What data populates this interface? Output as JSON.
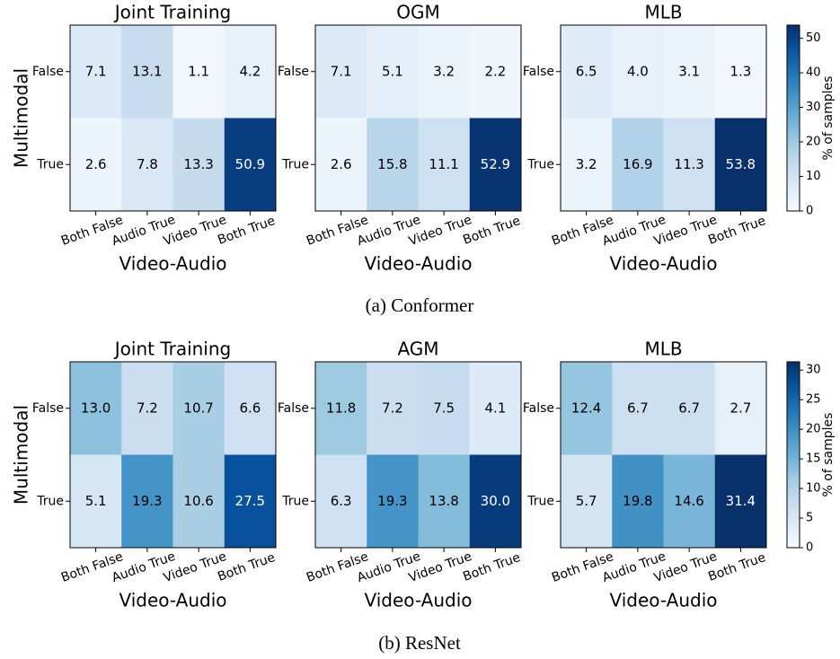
{
  "chart_data": [
    {
      "type": "heatmap",
      "title": "Joint Training",
      "x_label": "Video-Audio",
      "y_label": "Multimodal",
      "x": [
        "Both False",
        "Audio True",
        "Video True",
        "Both True"
      ],
      "y": [
        "False",
        "True"
      ],
      "values": [
        [
          7.1,
          13.1,
          1.1,
          4.2
        ],
        [
          2.6,
          7.8,
          13.3,
          50.9
        ]
      ],
      "value_labels": [
        [
          "7.1",
          "13.1",
          "1.1",
          "4.2"
        ],
        [
          "2.6",
          "7.8",
          "13.3",
          "50.9"
        ]
      ],
      "colormap": "Blues",
      "clim": [
        0,
        53.8
      ]
    },
    {
      "type": "heatmap",
      "title": "OGM",
      "x_label": "Video-Audio",
      "x": [
        "Both False",
        "Audio True",
        "Video True",
        "Both True"
      ],
      "y": [
        "False",
        "True"
      ],
      "values": [
        [
          7.1,
          5.1,
          3.2,
          2.2
        ],
        [
          2.6,
          15.8,
          11.1,
          52.9
        ]
      ],
      "value_labels": [
        [
          "7.1",
          "5.1",
          "3.2",
          "2.2"
        ],
        [
          "2.6",
          "15.8",
          "11.1",
          "52.9"
        ]
      ],
      "colormap": "Blues",
      "clim": [
        0,
        53.8
      ]
    },
    {
      "type": "heatmap",
      "title": "MLB",
      "x_label": "Video-Audio",
      "x": [
        "Both False",
        "Audio True",
        "Video True",
        "Both True"
      ],
      "y": [
        "False",
        "True"
      ],
      "values": [
        [
          6.5,
          4.0,
          3.1,
          1.3
        ],
        [
          3.2,
          16.9,
          11.3,
          53.8
        ]
      ],
      "value_labels": [
        [
          "6.5",
          "4.0",
          "3.1",
          "1.3"
        ],
        [
          "3.2",
          "16.9",
          "11.3",
          "53.8"
        ]
      ],
      "colormap": "Blues",
      "clim": [
        0,
        53.8
      ],
      "colorbar": {
        "label": "% of samples",
        "ticks": [
          0,
          10,
          20,
          30,
          40,
          50
        ]
      }
    },
    {
      "type": "heatmap",
      "title": "Joint Training",
      "x_label": "Video-Audio",
      "y_label": "Multimodal",
      "x": [
        "Both False",
        "Audio True",
        "Video True",
        "Both True"
      ],
      "y": [
        "False",
        "True"
      ],
      "values": [
        [
          13.0,
          7.2,
          10.7,
          6.6
        ],
        [
          5.1,
          19.3,
          10.6,
          27.5
        ]
      ],
      "value_labels": [
        [
          "13.0",
          "7.2",
          "10.7",
          "6.6"
        ],
        [
          "5.1",
          "19.3",
          "10.6",
          "27.5"
        ]
      ],
      "colormap": "Blues",
      "clim": [
        0,
        31.4
      ]
    },
    {
      "type": "heatmap",
      "title": "AGM",
      "x_label": "Video-Audio",
      "x": [
        "Both False",
        "Audio True",
        "Video True",
        "Both True"
      ],
      "y": [
        "False",
        "True"
      ],
      "values": [
        [
          11.8,
          7.2,
          7.5,
          4.1
        ],
        [
          6.3,
          19.3,
          13.8,
          30.0
        ]
      ],
      "value_labels": [
        [
          "11.8",
          "7.2",
          "7.5",
          "4.1"
        ],
        [
          "6.3",
          "19.3",
          "13.8",
          "30.0"
        ]
      ],
      "colormap": "Blues",
      "clim": [
        0,
        31.4
      ]
    },
    {
      "type": "heatmap",
      "title": "MLB",
      "x_label": "Video-Audio",
      "x": [
        "Both False",
        "Audio True",
        "Video True",
        "Both True"
      ],
      "y": [
        "False",
        "True"
      ],
      "values": [
        [
          12.4,
          6.7,
          6.7,
          2.7
        ],
        [
          5.7,
          19.8,
          14.6,
          31.4
        ]
      ],
      "value_labels": [
        [
          "12.4",
          "6.7",
          "6.7",
          "2.7"
        ],
        [
          "5.7",
          "19.8",
          "14.6",
          "31.4"
        ]
      ],
      "colormap": "Blues",
      "clim": [
        0,
        31.4
      ],
      "colorbar": {
        "label": "% of samples",
        "ticks": [
          0,
          5,
          10,
          15,
          20,
          25,
          30
        ]
      }
    }
  ],
  "captions": [
    "(a) Conformer",
    "(b) ResNet"
  ]
}
